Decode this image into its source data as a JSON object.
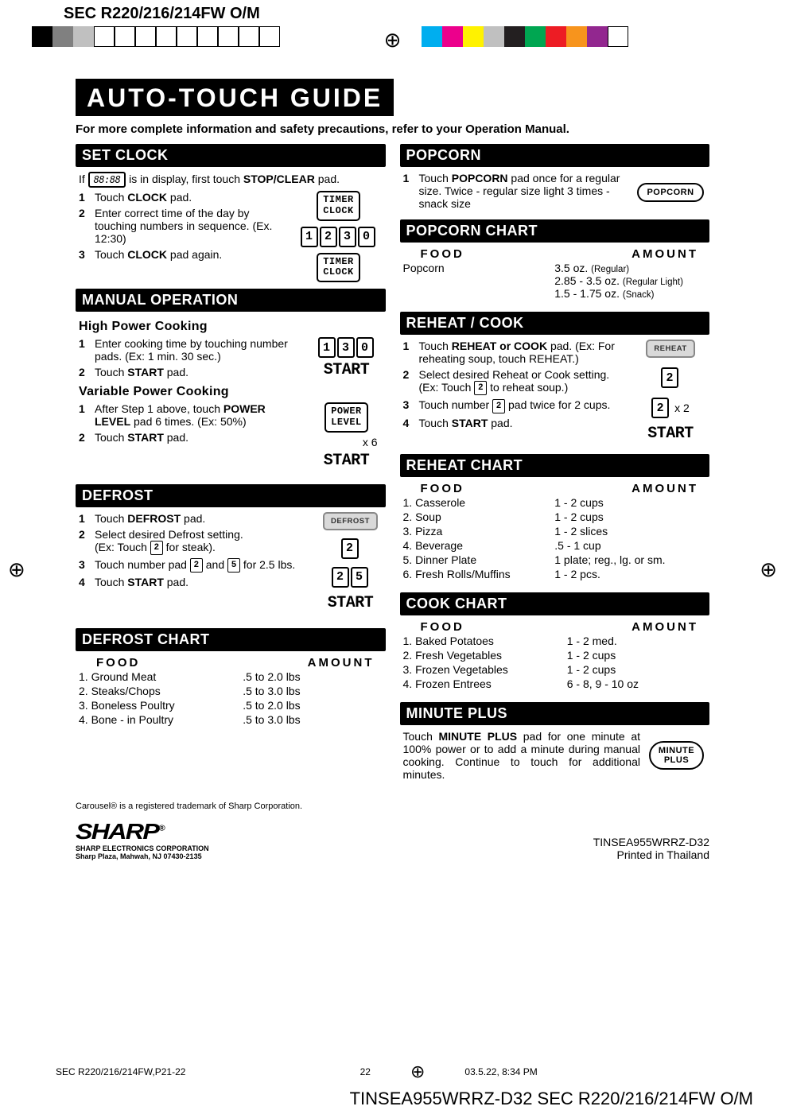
{
  "header_model": "SEC R220/216/214FW O/M",
  "print_colors_left": [
    "#000000",
    "#808080",
    "#c0c0c0",
    "#ffffff",
    "#ffffff",
    "#ffffff",
    "#ffffff",
    "#ffffff",
    "#ffffff",
    "#ffffff",
    "#ffffff",
    "#ffffff"
  ],
  "print_colors_right": [
    "#00aeef",
    "#ec008c",
    "#fff200",
    "#c0c0c0",
    "#231f20",
    "#00a651",
    "#ed1c24",
    "#f7941d",
    "#92278f",
    "#ffffff"
  ],
  "title": "AUTO-TOUCH GUIDE",
  "subtitle": "For more complete information and safety precautions, refer to your Operation Manual.",
  "set_clock": {
    "hd": "SET CLOCK",
    "intro_a": "If ",
    "intro_lcd": "88:88",
    "intro_b": " is in display, first touch ",
    "intro_bold": "STOP/CLEAR",
    "intro_c": " pad.",
    "s1_a": "Touch ",
    "s1_b": "CLOCK",
    "s1_c": " pad.",
    "s2": "Enter correct time of the day by touching numbers in sequence. (Ex. 12:30)",
    "s3_a": "Touch ",
    "s3_b": "CLOCK",
    "s3_c": " pad again.",
    "btn_timer_clock": "TIMER\nCLOCK",
    "digits": [
      "1",
      "2",
      "3",
      "0"
    ]
  },
  "manual": {
    "hd": "MANUAL OPERATION",
    "sub1": "High Power Cooking",
    "h1": "Enter cooking time by touching number pads. (Ex: 1 min. 30 sec.)",
    "h2_a": "Touch ",
    "h2_b": "START",
    "h2_c": " pad.",
    "digits_130": [
      "1",
      "3",
      "0"
    ],
    "start": "START",
    "sub2": "Variable Power Cooking",
    "v1_a": "After Step 1 above, touch ",
    "v1_b": "POWER LEVEL",
    "v1_c": " pad 6 times. (Ex: 50%)",
    "v2_a": "Touch ",
    "v2_b": "START",
    "v2_c": " pad.",
    "btn_power": "POWER\nLEVEL",
    "x6": "x 6"
  },
  "defrost": {
    "hd": "DEFROST",
    "s1_a": "Touch ",
    "s1_b": "DEFROST",
    "s1_c": " pad.",
    "s2_a": "Select desired Defrost setting.\n(Ex: Touch ",
    "s2_key": "2",
    "s2_b": " for steak).",
    "s3_a": "Touch number pad ",
    "s3_k1": "2",
    "s3_mid": " and ",
    "s3_k2": "5",
    "s3_b": " for 2.5 lbs.",
    "s4_a": "Touch ",
    "s4_b": "START",
    "s4_c": " pad.",
    "btn": "DEFROST",
    "d2": "2",
    "d25a": "2",
    "d25b": "5",
    "start": "START"
  },
  "defrost_chart": {
    "hd": "DEFROST CHART",
    "col_food": "FOOD",
    "col_amt": "AMOUNT",
    "rows": [
      {
        "f": "1. Ground Meat",
        "a": ".5 to 2.0 lbs"
      },
      {
        "f": "2. Steaks/Chops",
        "a": ".5 to 3.0 lbs"
      },
      {
        "f": "3. Boneless Poultry",
        "a": ".5 to 2.0 lbs"
      },
      {
        "f": "4. Bone - in Poultry",
        "a": ".5 to 3.0 lbs"
      }
    ]
  },
  "popcorn": {
    "hd": "POPCORN",
    "s1_a": "Touch ",
    "s1_b": "POPCORN",
    "s1_c": " pad once for a regular size. Twice - regular size light 3 times - snack size",
    "btn": "POPCORN"
  },
  "popcorn_chart": {
    "hd": "POPCORN CHART",
    "col_food": "FOOD",
    "col_amt": "AMOUNT",
    "food": "Popcorn",
    "l1": "3.5 oz. ",
    "l1s": "(Regular)",
    "l2": "2.85 - 3.5 oz. ",
    "l2s": "(Regular Light)",
    "l3": "1.5 - 1.75 oz. ",
    "l3s": "(Snack)"
  },
  "reheat": {
    "hd": "REHEAT / COOK",
    "s1_a": "Touch ",
    "s1_b": "REHEAT or COOK",
    "s1_c": " pad. (Ex: For reheating soup, touch REHEAT.)",
    "s2_a": "Select desired Reheat or Cook setting. (Ex: Touch ",
    "s2_k": "2",
    "s2_b": " to reheat soup.)",
    "s3_a": "Touch number ",
    "s3_k": "2",
    "s3_b": " pad twice for 2 cups.",
    "s4_a": "Touch ",
    "s4_b": "START",
    "s4_c": " pad.",
    "btn": "REHEAT",
    "d2": "2",
    "x2": "x 2",
    "start": "START"
  },
  "reheat_chart": {
    "hd": "REHEAT CHART",
    "col_food": "FOOD",
    "col_amt": "AMOUNT",
    "rows": [
      {
        "f": "1. Casserole",
        "a": "1 - 2 cups"
      },
      {
        "f": "2. Soup",
        "a": "1 - 2 cups"
      },
      {
        "f": "3. Pizza",
        "a": "1 - 2 slices"
      },
      {
        "f": "4. Beverage",
        "a": ".5 - 1 cup"
      },
      {
        "f": "5. Dinner Plate",
        "a": "1 plate; reg., lg. or sm."
      },
      {
        "f": "6. Fresh Rolls/Muffins",
        "a": "1 - 2 pcs."
      }
    ]
  },
  "cook_chart": {
    "hd": "COOK CHART",
    "col_food": "FOOD",
    "col_amt": "AMOUNT",
    "rows": [
      {
        "f": "1. Baked Potatoes",
        "a": "1 - 2 med."
      },
      {
        "f": "2. Fresh Vegetables",
        "a": "1 - 2 cups"
      },
      {
        "f": "3. Frozen Vegetables",
        "a": "1 - 2 cups"
      },
      {
        "f": "4. Frozen Entrees",
        "a": "6 - 8, 9 - 10 oz"
      }
    ]
  },
  "minute": {
    "hd": "MINUTE PLUS",
    "text_a": "Touch ",
    "text_b": "MINUTE PLUS",
    "text_c": " pad for one minute at 100% power or to add a minute during manual cooking. Continue to touch for additional minutes.",
    "btn": "MINUTE\nPLUS"
  },
  "footer": {
    "trademark": "Carousel® is a registered trademark of Sharp Corporation.",
    "logo": "SHARP",
    "corp1": "SHARP ELECTRONICS CORPORATION",
    "corp2": "Sharp Plaza, Mahwah, NJ 07430-2135",
    "code": "TINSEA955WRRZ-D32",
    "printed": "Printed in Thailand"
  },
  "printbar": {
    "left": "SEC R220/216/214FW,P21-22",
    "page": "22",
    "right": "03.5.22, 8:34 PM"
  },
  "bottom_code": "TINSEA955WRRZ-D32 SEC R220/216/214FW O/M"
}
